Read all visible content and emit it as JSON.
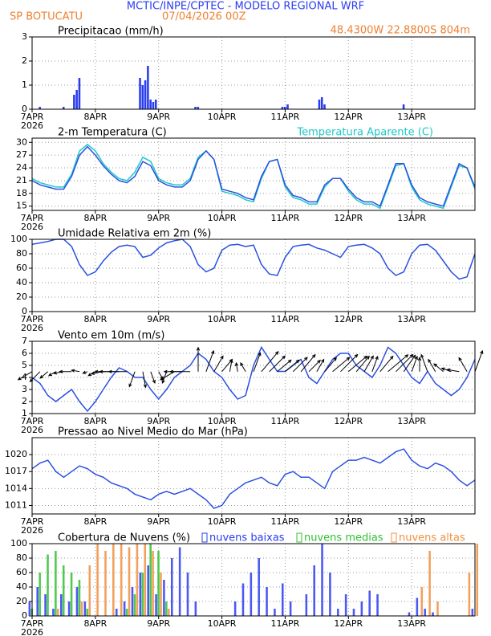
{
  "header": {
    "title": "MCTIC/INPE/CPTEC - MODELO REGIONAL WRF",
    "location": "SP BOTUCATU",
    "run": "07/04/2026 00Z",
    "coords": "48.4300W 22.8800S 804m"
  },
  "chart_data": [
    {
      "type": "bar",
      "title": "Precipitacao (mm/h)",
      "color": "#2a3cf0",
      "grid": true,
      "x": [
        3,
        12,
        16,
        17,
        18,
        41,
        42,
        43,
        44,
        45,
        46,
        47,
        62,
        63,
        95,
        96,
        97,
        109,
        110,
        111,
        141
      ],
      "values": [
        0.1,
        0.1,
        0.6,
        0.8,
        1.3,
        1.3,
        1.0,
        1.2,
        1.8,
        0.4,
        0.3,
        0.4,
        0.1,
        0.1,
        0.1,
        0.1,
        0.2,
        0.4,
        0.5,
        0.2,
        0.2
      ],
      "xlim": [
        0,
        168
      ],
      "xticks": [
        {
          "value": 0,
          "label": "7APR"
        },
        {
          "value": 24,
          "label": "8APR"
        },
        {
          "value": 48,
          "label": "9APR"
        },
        {
          "value": 72,
          "label": "10APR"
        },
        {
          "value": 96,
          "label": "11APR"
        },
        {
          "value": 120,
          "label": "12APR"
        },
        {
          "value": 144,
          "label": "13APR"
        }
      ],
      "x_year": "2026",
      "ylim": [
        0,
        3
      ],
      "yticks": [
        0,
        1,
        2,
        3
      ]
    },
    {
      "type": "line",
      "title": "2-m Temperatura (C)",
      "grid": true,
      "x": [
        0,
        3,
        6,
        9,
        12,
        15,
        18,
        21,
        24,
        27,
        30,
        33,
        36,
        39,
        42,
        45,
        48,
        51,
        54,
        57,
        60,
        63,
        66,
        69,
        72,
        75,
        78,
        81,
        84,
        87,
        90,
        93,
        96,
        99,
        102,
        105,
        108,
        111,
        114,
        117,
        120,
        123,
        126,
        129,
        132,
        135,
        138,
        141,
        144,
        147,
        150,
        153,
        156,
        159,
        162,
        165,
        168
      ],
      "series": [
        {
          "name": "Temperatura Aparente (C)",
          "color": "#20c8c8",
          "values": [
            21.5,
            20.5,
            20,
            19.5,
            19.5,
            22.5,
            28,
            29.5,
            28,
            25,
            23,
            21.5,
            21,
            23,
            26.5,
            25.5,
            21.5,
            20.5,
            20,
            20,
            21.5,
            26.5,
            28,
            26,
            18.5,
            18,
            17.5,
            16.5,
            16,
            21.5,
            25.5,
            26,
            19.5,
            17,
            16.5,
            15.5,
            15.5,
            19.5,
            21.5,
            21.5,
            18.5,
            16.5,
            15.5,
            15.5,
            14.5,
            19.5,
            24.5,
            25,
            19.5,
            16.5,
            15.5,
            15,
            14.5,
            19.5,
            24.5,
            24,
            19
          ]
        },
        {
          "color": "#2a50e0",
          "values": [
            21,
            20,
            19.5,
            19,
            19,
            22,
            27,
            29,
            27,
            24.5,
            22.5,
            21,
            20.5,
            22,
            25.5,
            24.5,
            21,
            20,
            19.5,
            19.5,
            21,
            26,
            28,
            26,
            19,
            18.5,
            18,
            17,
            16.5,
            22,
            25.5,
            26,
            20,
            17.5,
            17,
            16,
            16,
            20,
            21.5,
            21.5,
            19,
            17,
            16,
            16,
            15,
            20,
            25,
            25,
            20,
            17,
            16,
            15.5,
            15,
            20,
            25,
            24,
            19.5
          ]
        }
      ],
      "xlim": [
        0,
        168
      ],
      "xticks": [
        {
          "value": 0,
          "label": "7APR"
        },
        {
          "value": 24,
          "label": "8APR"
        },
        {
          "value": 48,
          "label": "9APR"
        },
        {
          "value": 72,
          "label": "10APR"
        },
        {
          "value": 96,
          "label": "11APR"
        },
        {
          "value": 120,
          "label": "12APR"
        },
        {
          "value": 144,
          "label": "13APR"
        }
      ],
      "x_year": "2026",
      "ylim": [
        14,
        31
      ],
      "yticks": [
        15,
        18,
        21,
        24,
        27,
        30
      ]
    },
    {
      "type": "line",
      "title": "Umidade Relativa em 2m (%)",
      "color": "#2a50e0",
      "grid": true,
      "x": [
        0,
        3,
        6,
        9,
        12,
        15,
        18,
        21,
        24,
        27,
        30,
        33,
        36,
        39,
        42,
        45,
        48,
        51,
        54,
        57,
        60,
        63,
        66,
        69,
        72,
        75,
        78,
        81,
        84,
        87,
        90,
        93,
        96,
        99,
        102,
        105,
        108,
        111,
        114,
        117,
        120,
        123,
        126,
        129,
        132,
        135,
        138,
        141,
        144,
        147,
        150,
        153,
        156,
        159,
        162,
        165,
        168
      ],
      "values": [
        93,
        95,
        97,
        100,
        100,
        90,
        65,
        50,
        55,
        70,
        82,
        90,
        92,
        90,
        75,
        78,
        88,
        95,
        98,
        100,
        90,
        65,
        55,
        60,
        85,
        92,
        93,
        90,
        92,
        65,
        52,
        50,
        75,
        90,
        92,
        93,
        88,
        85,
        80,
        75,
        90,
        92,
        93,
        88,
        80,
        60,
        50,
        55,
        80,
        92,
        93,
        85,
        70,
        55,
        45,
        48,
        80
      ],
      "xlim": [
        0,
        168
      ],
      "xticks": [
        {
          "value": 0,
          "label": "7APR"
        },
        {
          "value": 24,
          "label": "8APR"
        },
        {
          "value": 48,
          "label": "9APR"
        },
        {
          "value": 72,
          "label": "10APR"
        },
        {
          "value": 96,
          "label": "11APR"
        },
        {
          "value": 120,
          "label": "12APR"
        },
        {
          "value": 144,
          "label": "13APR"
        }
      ],
      "x_year": "2026",
      "ylim": [
        0,
        100
      ],
      "yticks": [
        0,
        20,
        40,
        60,
        80,
        100
      ]
    },
    {
      "type": "line",
      "title": "Vento em 10m (m/s)",
      "color": "#2a50e0",
      "grid": true,
      "x": [
        0,
        3,
        6,
        9,
        12,
        15,
        18,
        21,
        24,
        27,
        30,
        33,
        36,
        39,
        42,
        45,
        48,
        51,
        54,
        57,
        60,
        63,
        66,
        69,
        72,
        75,
        78,
        81,
        84,
        87,
        90,
        93,
        96,
        99,
        102,
        105,
        108,
        111,
        114,
        117,
        120,
        123,
        126,
        129,
        132,
        135,
        138,
        141,
        144,
        147,
        150,
        153,
        156,
        159,
        162,
        165,
        168
      ],
      "values": [
        4,
        3.5,
        2.5,
        2,
        2.5,
        3,
        2,
        1.2,
        2,
        3,
        4,
        4.8,
        4.5,
        4,
        4,
        3,
        2.2,
        3,
        4,
        4.5,
        5,
        6,
        5.5,
        4.5,
        4,
        3,
        2.2,
        2.5,
        5,
        6.5,
        5.5,
        4.5,
        4.5,
        5,
        5.5,
        4,
        3.5,
        4.5,
        5.5,
        6,
        6,
        5,
        4.5,
        4,
        5,
        6.5,
        6,
        5,
        4,
        3.5,
        4.5,
        3.5,
        3,
        2.5,
        3,
        4,
        5.5
      ],
      "direction": [
        60,
        45,
        50,
        60,
        80,
        90,
        100,
        70,
        60,
        80,
        90,
        90,
        90,
        20,
        350,
        340,
        330,
        20,
        60,
        90,
        90,
        180,
        200,
        210,
        220,
        190,
        170,
        150,
        200,
        220,
        225,
        230,
        230,
        225,
        220,
        225,
        210,
        220,
        230,
        225,
        230,
        220,
        210,
        200,
        220,
        230,
        225,
        215,
        200,
        180,
        160,
        150,
        130,
        110,
        100,
        150,
        200
      ],
      "xlim": [
        0,
        168
      ],
      "xticks": [
        {
          "value": 0,
          "label": "7APR"
        },
        {
          "value": 24,
          "label": "8APR"
        },
        {
          "value": 48,
          "label": "9APR"
        },
        {
          "value": 72,
          "label": "10APR"
        },
        {
          "value": 96,
          "label": "11APR"
        },
        {
          "value": 120,
          "label": "12APR"
        },
        {
          "value": 144,
          "label": "13APR"
        }
      ],
      "x_year": "2026",
      "ylim": [
        1,
        7
      ],
      "yticks": [
        1,
        2,
        3,
        4,
        5,
        6,
        7
      ]
    },
    {
      "type": "line",
      "title": "Pressao ao Nivel Medio do Mar (hPa)",
      "color": "#2a50e0",
      "grid": true,
      "x": [
        0,
        3,
        6,
        9,
        12,
        15,
        18,
        21,
        24,
        27,
        30,
        33,
        36,
        39,
        42,
        45,
        48,
        51,
        54,
        57,
        60,
        63,
        66,
        69,
        72,
        75,
        78,
        81,
        84,
        87,
        90,
        93,
        96,
        99,
        102,
        105,
        108,
        111,
        114,
        117,
        120,
        123,
        126,
        129,
        132,
        135,
        138,
        141,
        144,
        147,
        150,
        153,
        156,
        159,
        162,
        165,
        168
      ],
      "values": [
        1017.5,
        1018.5,
        1019,
        1017,
        1016,
        1017,
        1018,
        1017.5,
        1016.5,
        1016,
        1015,
        1014.5,
        1014,
        1013,
        1012.5,
        1012,
        1013,
        1013.5,
        1013,
        1013.5,
        1014,
        1013,
        1012,
        1010.5,
        1011,
        1013,
        1014,
        1015,
        1015.5,
        1016,
        1015,
        1014.5,
        1016.5,
        1017,
        1016,
        1016,
        1015,
        1014,
        1017,
        1018,
        1019,
        1019,
        1019.5,
        1019,
        1018.5,
        1019.5,
        1020.5,
        1021,
        1019,
        1018,
        1017.5,
        1018.5,
        1018,
        1017,
        1015.5,
        1014.5,
        1015.5
      ],
      "xlim": [
        0,
        168
      ],
      "xticks": [
        {
          "value": 0,
          "label": "7APR"
        },
        {
          "value": 24,
          "label": "8APR"
        },
        {
          "value": 48,
          "label": "9APR"
        },
        {
          "value": 72,
          "label": "10APR"
        },
        {
          "value": 96,
          "label": "11APR"
        },
        {
          "value": 120,
          "label": "12APR"
        },
        {
          "value": 144,
          "label": "13APR"
        }
      ],
      "x_year": "2026",
      "ylim": [
        1009.5,
        1023
      ],
      "yticks": [
        1011,
        1014,
        1017,
        1020
      ]
    },
    {
      "type": "bar",
      "title": "Cobertura de Nuvens (%)",
      "grid": true,
      "x": [
        0,
        3,
        6,
        9,
        12,
        15,
        18,
        21,
        24,
        27,
        30,
        33,
        36,
        39,
        42,
        45,
        48,
        51,
        54,
        57,
        60,
        63,
        66,
        69,
        72,
        75,
        78,
        81,
        84,
        87,
        90,
        93,
        96,
        99,
        102,
        105,
        108,
        111,
        114,
        117,
        120,
        123,
        126,
        129,
        132,
        135,
        138,
        141,
        144,
        147,
        150,
        153,
        156,
        159,
        162,
        165,
        168
      ],
      "series": [
        {
          "name": "nuvens baixas",
          "color": "#2a3cf0",
          "values": [
            20,
            40,
            30,
            10,
            30,
            20,
            40,
            20,
            0,
            0,
            0,
            10,
            20,
            40,
            60,
            70,
            30,
            50,
            80,
            95,
            60,
            20,
            0,
            0,
            0,
            0,
            20,
            45,
            60,
            80,
            40,
            10,
            45,
            20,
            0,
            30,
            70,
            100,
            60,
            10,
            30,
            10,
            20,
            35,
            30,
            0,
            0,
            0,
            5,
            25,
            10,
            5,
            0,
            0,
            0,
            0,
            10
          ]
        },
        {
          "name": "nuvens medias",
          "color": "#30c030",
          "values": [
            10,
            60,
            85,
            90,
            70,
            60,
            50,
            10,
            0,
            0,
            0,
            0,
            10,
            30,
            60,
            100,
            90,
            20,
            0,
            0,
            0,
            0,
            0,
            0,
            0,
            0,
            0,
            0,
            0,
            0,
            0,
            0,
            0,
            0,
            0,
            0,
            0,
            0,
            0,
            0,
            0,
            0,
            0,
            0,
            0,
            0,
            0,
            0,
            0,
            0,
            0,
            0,
            0,
            0,
            0,
            0,
            0
          ]
        },
        {
          "name": "nuvens altas",
          "color": "#f09040",
          "values": [
            0,
            0,
            0,
            10,
            0,
            0,
            20,
            70,
            100,
            90,
            100,
            100,
            95,
            100,
            100,
            90,
            60,
            10,
            0,
            0,
            0,
            0,
            0,
            0,
            0,
            0,
            0,
            0,
            0,
            0,
            0,
            0,
            0,
            0,
            0,
            0,
            0,
            0,
            0,
            0,
            0,
            0,
            0,
            0,
            0,
            0,
            0,
            0,
            0,
            40,
            90,
            20,
            0,
            0,
            0,
            60,
            100
          ]
        }
      ],
      "xlim": [
        0,
        168
      ],
      "xticks": [
        {
          "value": 0,
          "label": "7APR"
        },
        {
          "value": 24,
          "label": "8APR"
        },
        {
          "value": 48,
          "label": "9APR"
        },
        {
          "value": 72,
          "label": "10APR"
        },
        {
          "value": 96,
          "label": "11APR"
        },
        {
          "value": 120,
          "label": "12APR"
        },
        {
          "value": 144,
          "label": "13APR"
        }
      ],
      "x_year": "2026",
      "ylim": [
        0,
        100
      ],
      "yticks": [
        0,
        20,
        40,
        60,
        80,
        100
      ]
    }
  ]
}
